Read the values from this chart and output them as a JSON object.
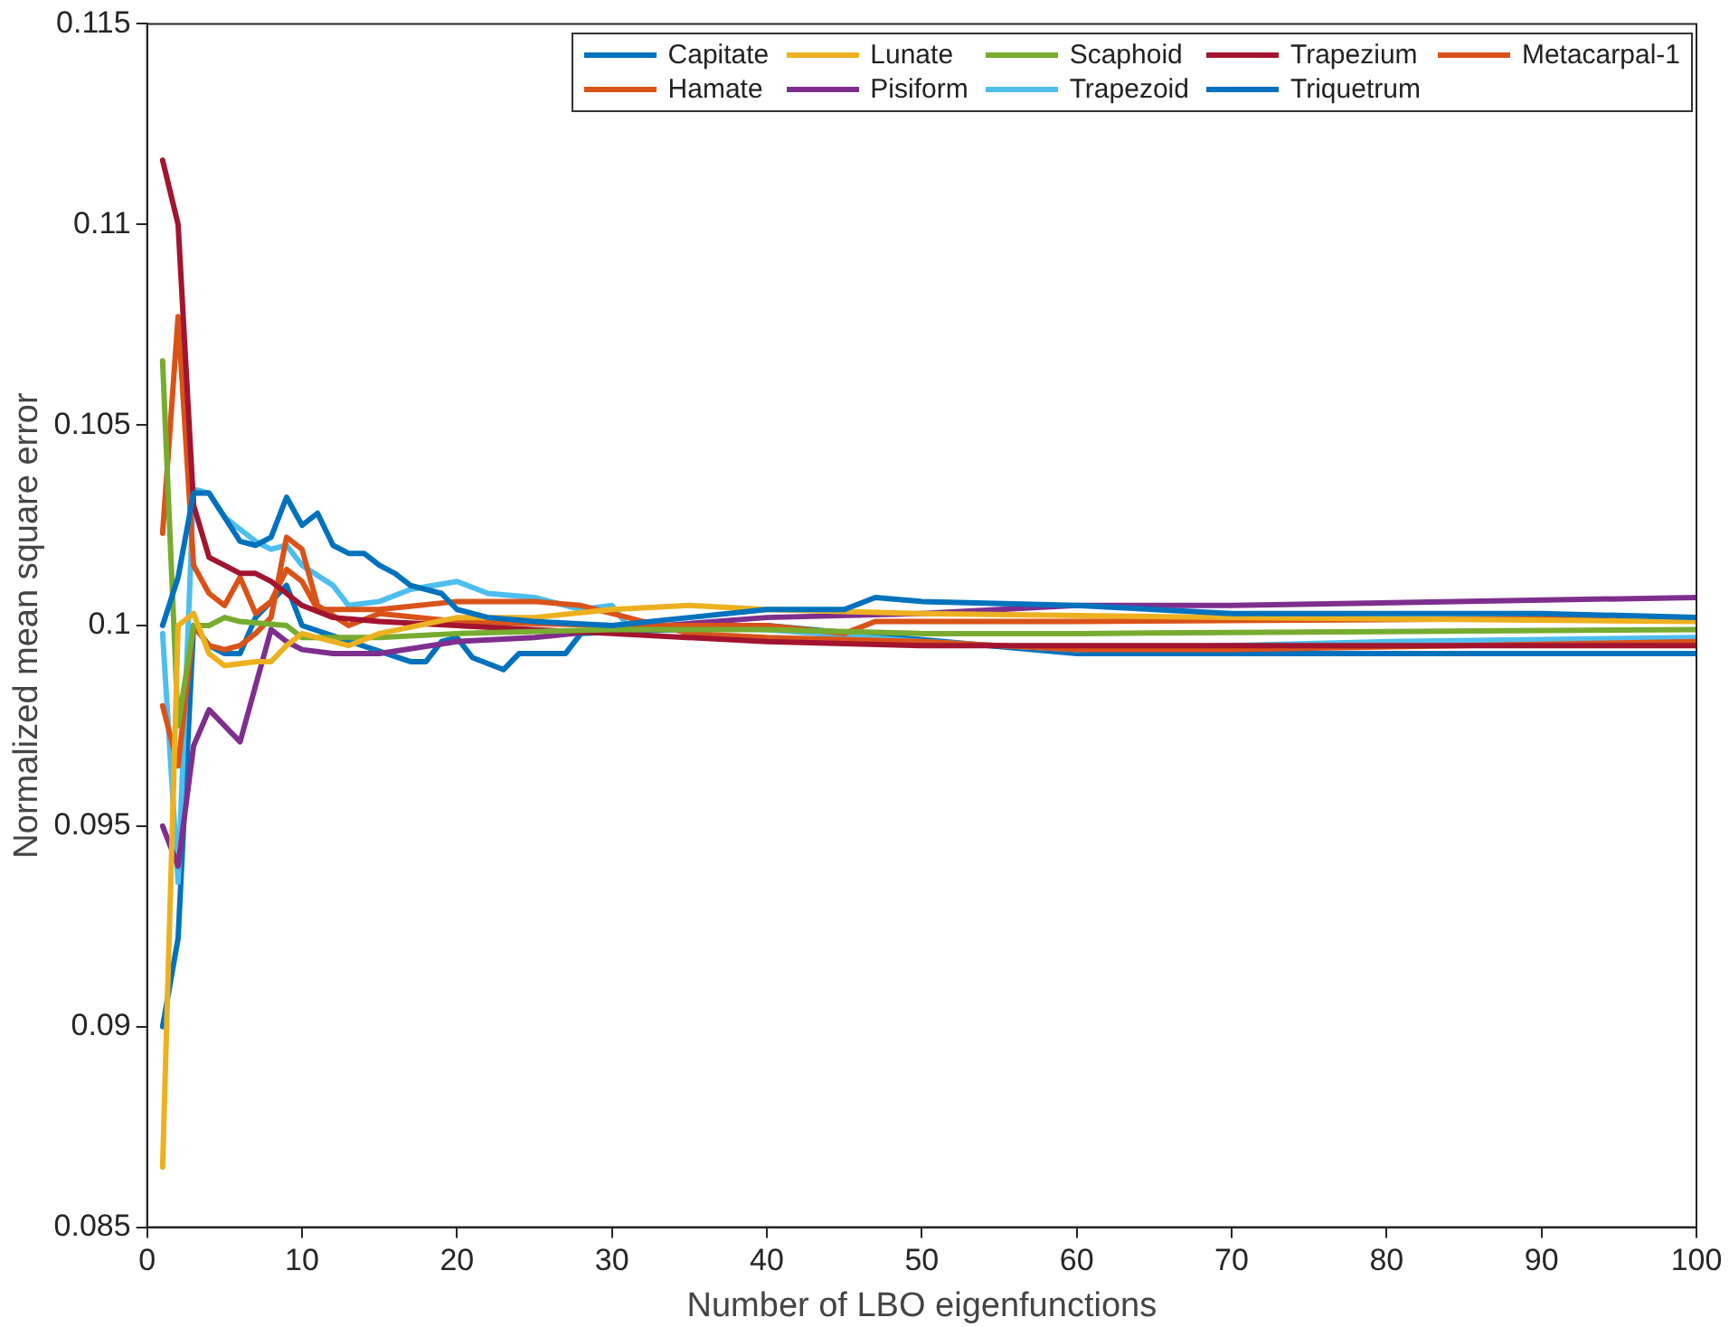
{
  "chart_data": {
    "type": "line",
    "xlabel": "Number of LBO eigenfunctions",
    "ylabel": "Normalized mean square error",
    "xlim": [
      0,
      100
    ],
    "xticks": [
      0,
      10,
      20,
      30,
      40,
      50,
      60,
      70,
      80,
      90,
      100
    ],
    "ylim": [
      0.085,
      0.115
    ],
    "yticks": [
      0.085,
      0.09,
      0.095,
      0.1,
      0.105,
      0.11,
      0.115
    ],
    "grid": false,
    "legend": "top right",
    "marker": "none",
    "line_style": "solid",
    "series": [
      {
        "name": "Capitate",
        "color": "#0072bd",
        "x": [
          1,
          2,
          3,
          4,
          5,
          6,
          7,
          8,
          9,
          10,
          11,
          12,
          13,
          14,
          15,
          16,
          17,
          18,
          19,
          20,
          22,
          25,
          30,
          35,
          40,
          45,
          47,
          50,
          60,
          70,
          80,
          90,
          100
        ],
        "values": [
          0.1,
          0.1012,
          0.1033,
          0.1033,
          0.1027,
          0.1021,
          0.102,
          0.1022,
          0.1032,
          0.1025,
          0.1028,
          0.102,
          0.1018,
          0.1018,
          0.1015,
          0.1013,
          0.101,
          0.1009,
          0.1008,
          0.1004,
          0.1002,
          0.1001,
          0.1,
          0.1002,
          0.1004,
          0.1004,
          0.1007,
          0.1006,
          0.1005,
          0.1003,
          0.1003,
          0.1003,
          0.1002
        ]
      },
      {
        "name": "Lunate",
        "color": "#edb120",
        "x": [
          1,
          2,
          3,
          4,
          5,
          7,
          8,
          9,
          10,
          13,
          15,
          20,
          25,
          30,
          35,
          40,
          50,
          70,
          100
        ],
        "values": [
          0.0865,
          0.1,
          0.1003,
          0.0993,
          0.099,
          0.0991,
          0.0991,
          0.0995,
          0.0998,
          0.0995,
          0.0998,
          0.1002,
          0.1002,
          0.1004,
          0.1005,
          0.1004,
          0.1003,
          0.1002,
          0.1001
        ]
      },
      {
        "name": "Scaphoid",
        "color": "#77ac30",
        "x": [
          1,
          2,
          3,
          4,
          5,
          6,
          9,
          10,
          15,
          20,
          30,
          40,
          50,
          60,
          100
        ],
        "values": [
          0.1066,
          0.0975,
          0.1,
          0.1,
          0.1002,
          0.1001,
          0.1,
          0.0997,
          0.0997,
          0.0998,
          0.0999,
          0.0999,
          0.0998,
          0.0998,
          0.0999
        ]
      },
      {
        "name": "Trapezium",
        "color": "#a2142f",
        "x": [
          1,
          2,
          3,
          4,
          5,
          6,
          7,
          8,
          9,
          10,
          12,
          15,
          20,
          30,
          40,
          50,
          60,
          70,
          100
        ],
        "values": [
          0.1116,
          0.11,
          0.103,
          0.1017,
          0.1015,
          0.1013,
          0.1013,
          0.1011,
          0.1008,
          0.1005,
          0.1002,
          0.1001,
          0.1,
          0.0998,
          0.0996,
          0.0995,
          0.0995,
          0.0995,
          0.0995
        ]
      },
      {
        "name": "Metacarpal-1",
        "color": "#d95319",
        "x": [
          1,
          2,
          3,
          4,
          5,
          6,
          7,
          8,
          9,
          10,
          11,
          15,
          20,
          25,
          28,
          30,
          35,
          40,
          50,
          60,
          70,
          100
        ],
        "values": [
          0.1023,
          0.1077,
          0.1015,
          0.1008,
          0.1005,
          0.1012,
          0.1003,
          0.1006,
          0.1014,
          0.1011,
          0.1004,
          0.1004,
          0.1006,
          0.1006,
          0.1005,
          0.1003,
          0.0998,
          0.0997,
          0.0996,
          0.0994,
          0.0994,
          0.0996
        ]
      },
      {
        "name": "Hamate",
        "color": "#d95319",
        "x": [
          1,
          2,
          3,
          4,
          5,
          6,
          7,
          8,
          9,
          10,
          11,
          13,
          15,
          20,
          30,
          40,
          45,
          47,
          60,
          100
        ],
        "values": [
          0.098,
          0.0965,
          0.1,
          0.0995,
          0.0994,
          0.0995,
          0.0998,
          0.1002,
          0.1022,
          0.1019,
          0.1005,
          0.1,
          0.1003,
          0.1001,
          0.1,
          0.1,
          0.0998,
          0.1001,
          0.1001,
          0.1002
        ]
      },
      {
        "name": "Pisiform",
        "color": "#7e2f8e",
        "x": [
          1,
          2,
          3,
          4,
          5,
          6,
          7,
          8,
          9,
          10,
          12,
          15,
          20,
          25,
          30,
          40,
          50,
          60,
          70,
          100
        ],
        "values": [
          0.095,
          0.094,
          0.097,
          0.0979,
          0.0975,
          0.0971,
          0.0985,
          0.0999,
          0.0996,
          0.0994,
          0.0993,
          0.0993,
          0.0996,
          0.0997,
          0.0999,
          0.1002,
          0.1003,
          0.1005,
          0.1005,
          0.1007
        ]
      },
      {
        "name": "Trapezoid",
        "color": "#4dbeee",
        "x": [
          1,
          2,
          3,
          4,
          5,
          6,
          7,
          8,
          9,
          10,
          12,
          13,
          15,
          17,
          20,
          22,
          25,
          28,
          30,
          31,
          40,
          50,
          60,
          80,
          100
        ],
        "values": [
          0.0998,
          0.0936,
          0.1034,
          0.1033,
          0.1027,
          0.1024,
          0.1021,
          0.1019,
          0.102,
          0.1015,
          0.101,
          0.1005,
          0.1006,
          0.1009,
          0.1011,
          0.1008,
          0.1007,
          0.1004,
          0.1005,
          0.1,
          0.0999,
          0.0996,
          0.0994,
          0.0996,
          0.0997
        ]
      },
      {
        "name": "Triquetrum",
        "color": "#0072bd",
        "x": [
          1,
          2,
          3,
          4,
          5,
          6,
          7,
          8,
          9,
          10,
          17,
          18,
          19,
          20,
          21,
          23,
          24,
          27,
          28,
          40,
          60,
          100
        ],
        "values": [
          0.09,
          0.0922,
          0.1,
          0.0995,
          0.0993,
          0.0993,
          0.1002,
          0.1006,
          0.101,
          0.1,
          0.0991,
          0.0991,
          0.0996,
          0.0997,
          0.0992,
          0.0989,
          0.0993,
          0.0993,
          0.0998,
          0.1,
          0.0993,
          0.0993
        ]
      }
    ]
  }
}
